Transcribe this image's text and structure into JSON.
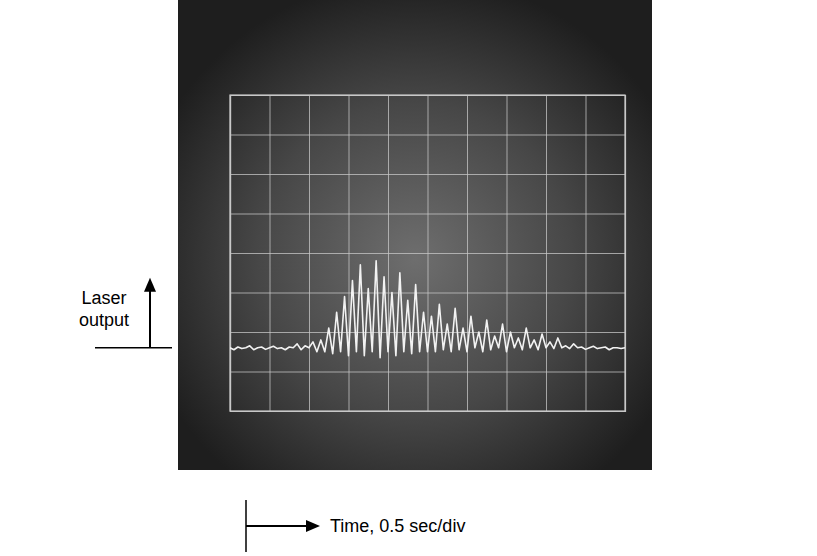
{
  "chart_data": {
    "type": "line",
    "x_label": "Time, 0.5 sec/div",
    "y_label": "Laser output",
    "x": [
      0,
      0.05,
      0.1,
      0.15,
      0.2,
      0.25,
      0.3,
      0.35,
      0.4,
      0.45,
      0.5,
      0.55,
      0.6,
      0.65,
      0.7,
      0.75,
      0.8,
      0.85,
      0.9,
      0.95,
      1,
      1.05,
      1.1,
      1.15,
      1.2,
      1.25,
      1.3,
      1.35,
      1.4,
      1.45,
      1.5,
      1.55,
      1.6,
      1.65,
      1.7,
      1.75,
      1.8,
      1.85,
      1.9,
      1.95,
      2,
      2.05,
      2.1,
      2.15,
      2.2,
      2.25,
      2.3,
      2.35,
      2.4,
      2.45,
      2.5,
      2.55,
      2.6,
      2.65,
      2.7,
      2.75,
      2.8,
      2.85,
      2.9,
      2.95,
      3,
      3.05,
      3.1,
      3.15,
      3.2,
      3.25,
      3.3,
      3.35,
      3.4,
      3.45,
      3.5,
      3.55,
      3.6,
      3.65,
      3.7,
      3.75,
      3.8,
      3.85,
      3.9,
      3.95,
      4,
      4.05,
      4.1,
      4.15,
      4.2,
      4.25,
      4.3,
      4.35,
      4.4,
      4.45,
      4.5,
      4.55,
      4.6,
      4.65,
      4.7,
      4.75,
      4.8,
      4.85,
      4.9,
      4.95,
      5
    ],
    "series": [
      {
        "color": "#f2f2f2",
        "values": [
          1.6,
          1.55,
          1.62,
          1.58,
          1.6,
          1.65,
          1.55,
          1.6,
          1.62,
          1.56,
          1.6,
          1.64,
          1.58,
          1.6,
          1.55,
          1.62,
          1.6,
          1.7,
          1.55,
          1.65,
          1.6,
          1.75,
          1.5,
          1.8,
          1.5,
          2.1,
          1.45,
          2.5,
          1.5,
          2.9,
          1.4,
          3.3,
          1.5,
          3.7,
          1.4,
          3.1,
          1.5,
          3.8,
          1.35,
          3.4,
          1.5,
          3.0,
          1.4,
          3.5,
          1.5,
          2.8,
          1.45,
          3.2,
          1.5,
          2.5,
          1.5,
          2.4,
          1.5,
          2.7,
          1.55,
          2.2,
          1.5,
          2.6,
          1.55,
          2.1,
          1.5,
          2.4,
          1.6,
          2.0,
          1.5,
          2.3,
          1.55,
          1.9,
          1.6,
          2.2,
          1.5,
          2.0,
          1.6,
          1.85,
          1.55,
          2.1,
          1.6,
          1.8,
          1.55,
          1.95,
          1.6,
          1.75,
          1.58,
          1.85,
          1.6,
          1.65,
          1.58,
          1.7,
          1.6,
          1.62,
          1.56,
          1.6,
          1.64,
          1.58,
          1.6,
          1.62,
          1.55,
          1.6,
          1.6,
          1.58,
          1.6
        ]
      }
    ],
    "xlim": [
      0,
      5
    ],
    "ylim": [
      0,
      8
    ],
    "xticks": [
      0,
      0.5,
      1,
      1.5,
      2,
      2.5,
      3,
      3.5,
      4,
      4.5,
      5
    ],
    "yticks": [
      0,
      1,
      2,
      3,
      4,
      5,
      6,
      7,
      8
    ],
    "grid": true,
    "tick_labels": false
  }
}
